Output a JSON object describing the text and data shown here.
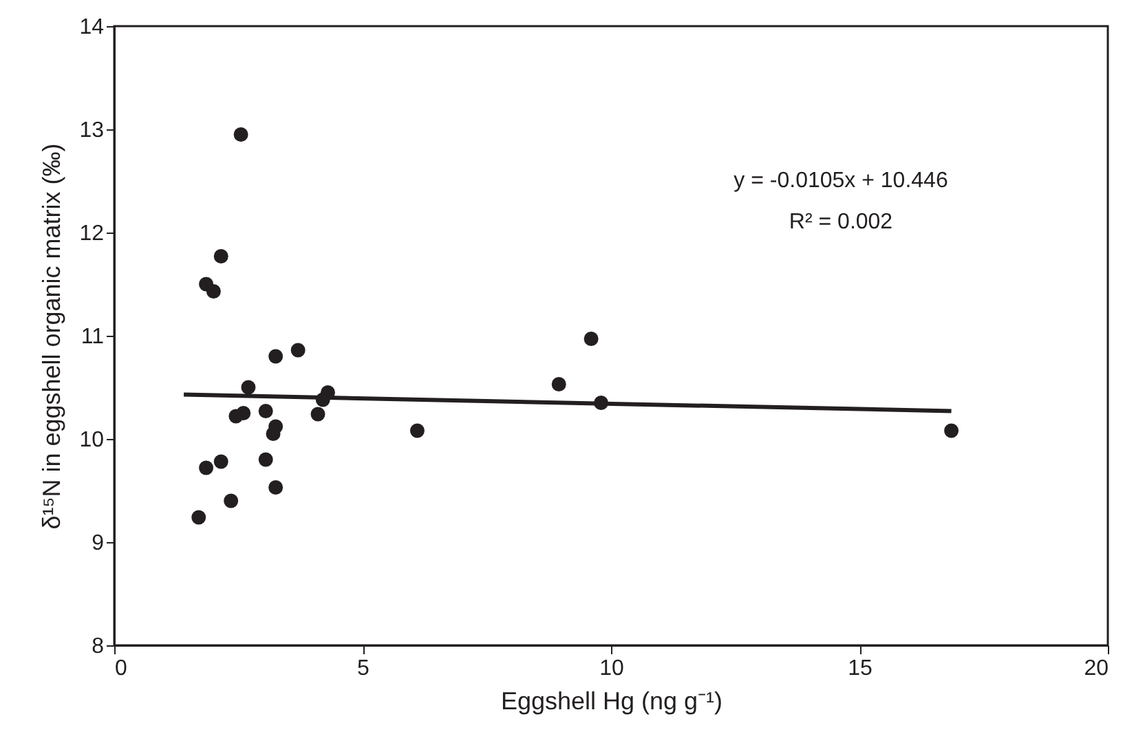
{
  "chart_data": {
    "type": "scatter",
    "xlabel": "Eggshell Hg (ng g⁻¹)",
    "ylabel": "δ¹⁵N in eggshell organic matrix (‰)",
    "xlim": [
      0,
      20
    ],
    "xticks": [
      0,
      5,
      10,
      15,
      20
    ],
    "ylim": [
      8,
      14
    ],
    "yticks": [
      8,
      9,
      10,
      11,
      12,
      13,
      14
    ],
    "grid": false,
    "series": [
      {
        "color": "#231f20",
        "marker": "circle",
        "x": [
          2.55,
          2.15,
          1.85,
          2.0,
          3.25,
          3.7,
          2.7,
          4.3,
          4.2,
          2.6,
          2.45,
          3.05,
          4.1,
          3.25,
          3.2,
          6.1,
          3.05,
          2.15,
          1.85,
          3.25,
          2.35,
          1.7,
          8.95,
          9.6,
          9.8,
          16.85
        ],
        "values": [
          12.95,
          11.77,
          11.5,
          11.43,
          10.8,
          10.86,
          10.5,
          10.45,
          10.38,
          10.25,
          10.22,
          10.27,
          10.24,
          10.12,
          10.05,
          10.08,
          9.8,
          9.78,
          9.72,
          9.53,
          9.4,
          9.24,
          10.53,
          10.97,
          10.35,
          10.08
        ]
      },
      {
        "type": "line",
        "color": "#231f20",
        "x": [
          1.4,
          16.85
        ],
        "values": [
          10.43,
          10.27
        ]
      }
    ],
    "annotations": [
      "y = -0.0105x + 10.446",
      "R² = 0.002"
    ]
  }
}
